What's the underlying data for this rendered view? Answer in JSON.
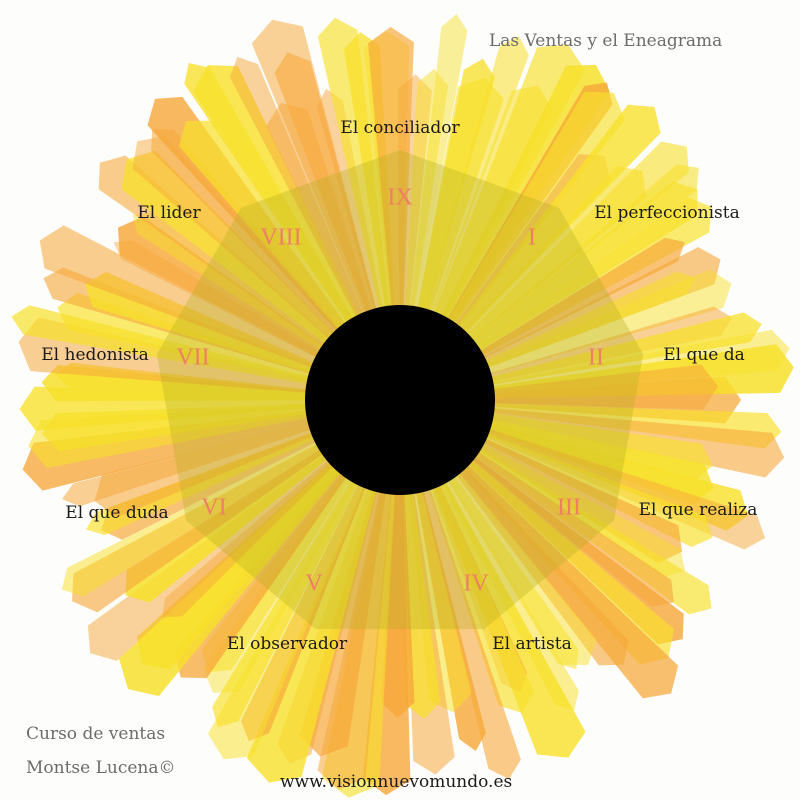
{
  "title": "Las Ventas y el Eneagrama",
  "credits": [
    "Curso de ventas",
    "Montse Lucena©"
  ],
  "url": "www.visionnuevomundo.es",
  "colors": {
    "ray_yellow": "#f7e02a",
    "ray_orange": "#f6a83a",
    "nonagon": "#b8b020",
    "numeral": "#ee7f62",
    "center": "#000000"
  },
  "types": [
    {
      "numeral": "I",
      "label": "El perfeccionista"
    },
    {
      "numeral": "II",
      "label": "El que da"
    },
    {
      "numeral": "III",
      "label": "El que realiza"
    },
    {
      "numeral": "IV",
      "label": "El artista"
    },
    {
      "numeral": "V",
      "label": "El observador"
    },
    {
      "numeral": "VI",
      "label": "El que duda"
    },
    {
      "numeral": "VII",
      "label": "El hedonista"
    },
    {
      "numeral": "VIII",
      "label": "El lider"
    },
    {
      "numeral": "IX",
      "label": "El conciliador"
    }
  ]
}
